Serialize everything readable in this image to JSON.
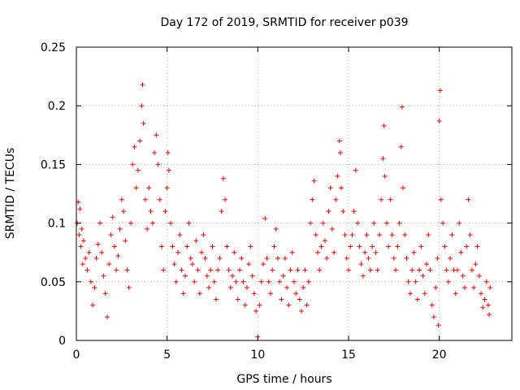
{
  "chart_data": {
    "type": "scatter",
    "title": "Day 172 of 2019, SRMTID for receiver p039",
    "xlabel": "GPS time / hours",
    "ylabel": "SRMTID / TECUs",
    "xlim": [
      0,
      24
    ],
    "ylim": [
      0,
      0.25
    ],
    "grid": true,
    "marker": "+",
    "color": "#ff0000",
    "x_ticks": [
      {
        "value": 0,
        "label": "0"
      },
      {
        "value": 5,
        "label": "5"
      },
      {
        "value": 10,
        "label": "10"
      },
      {
        "value": 15,
        "label": "15"
      },
      {
        "value": 20,
        "label": "20"
      }
    ],
    "y_ticks": [
      {
        "value": 0,
        "label": "0"
      },
      {
        "value": 0.05,
        "label": "0.05"
      },
      {
        "value": 0.1,
        "label": "0.1"
      },
      {
        "value": 0.15,
        "label": "0.15"
      },
      {
        "value": 0.2,
        "label": "0.2"
      },
      {
        "value": 0.25,
        "label": "0.25"
      }
    ],
    "series": [
      {
        "name": "SRMTID",
        "points": [
          [
            0.05,
            0.1
          ],
          [
            0.1,
            0.118
          ],
          [
            0.15,
            0.09
          ],
          [
            0.2,
            0.112
          ],
          [
            0.25,
            0.08
          ],
          [
            0.3,
            0.095
          ],
          [
            0.35,
            0.065
          ],
          [
            0.4,
            0.085
          ],
          [
            0.5,
            0.07
          ],
          [
            0.6,
            0.06
          ],
          [
            0.7,
            0.075
          ],
          [
            0.8,
            0.05
          ],
          [
            0.9,
            0.03
          ],
          [
            1.0,
            0.045
          ],
          [
            1.1,
            0.07
          ],
          [
            1.2,
            0.082
          ],
          [
            1.3,
            0.1
          ],
          [
            1.4,
            0.075
          ],
          [
            1.5,
            0.055
          ],
          [
            1.6,
            0.04
          ],
          [
            1.7,
            0.02
          ],
          [
            1.8,
            0.065
          ],
          [
            1.9,
            0.09
          ],
          [
            2.0,
            0.105
          ],
          [
            2.1,
            0.08
          ],
          [
            2.2,
            0.06
          ],
          [
            2.3,
            0.072
          ],
          [
            2.4,
            0.095
          ],
          [
            2.5,
            0.12
          ],
          [
            2.6,
            0.11
          ],
          [
            2.7,
            0.085
          ],
          [
            2.8,
            0.06
          ],
          [
            2.9,
            0.045
          ],
          [
            3.0,
            0.1
          ],
          [
            3.1,
            0.15
          ],
          [
            3.2,
            0.165
          ],
          [
            3.3,
            0.13
          ],
          [
            3.4,
            0.145
          ],
          [
            3.5,
            0.17
          ],
          [
            3.6,
            0.2
          ],
          [
            3.65,
            0.218
          ],
          [
            3.7,
            0.185
          ],
          [
            3.8,
            0.12
          ],
          [
            3.9,
            0.095
          ],
          [
            4.0,
            0.13
          ],
          [
            4.1,
            0.11
          ],
          [
            4.2,
            0.1
          ],
          [
            4.3,
            0.16
          ],
          [
            4.4,
            0.175
          ],
          [
            4.5,
            0.15
          ],
          [
            4.6,
            0.12
          ],
          [
            4.7,
            0.08
          ],
          [
            4.8,
            0.06
          ],
          [
            4.9,
            0.11
          ],
          [
            5.0,
            0.13
          ],
          [
            5.05,
            0.16
          ],
          [
            5.1,
            0.145
          ],
          [
            5.2,
            0.1
          ],
          [
            5.3,
            0.08
          ],
          [
            5.4,
            0.065
          ],
          [
            5.5,
            0.05
          ],
          [
            5.6,
            0.075
          ],
          [
            5.7,
            0.09
          ],
          [
            5.8,
            0.06
          ],
          [
            5.9,
            0.04
          ],
          [
            6.0,
            0.055
          ],
          [
            6.1,
            0.08
          ],
          [
            6.2,
            0.1
          ],
          [
            6.3,
            0.07
          ],
          [
            6.4,
            0.065
          ],
          [
            6.5,
            0.05
          ],
          [
            6.6,
            0.085
          ],
          [
            6.7,
            0.06
          ],
          [
            6.8,
            0.04
          ],
          [
            6.9,
            0.075
          ],
          [
            7.0,
            0.09
          ],
          [
            7.1,
            0.07
          ],
          [
            7.2,
            0.055
          ],
          [
            7.3,
            0.045
          ],
          [
            7.4,
            0.06
          ],
          [
            7.5,
            0.08
          ],
          [
            7.6,
            0.05
          ],
          [
            7.7,
            0.035
          ],
          [
            7.8,
            0.06
          ],
          [
            7.9,
            0.07
          ],
          [
            8.0,
            0.11
          ],
          [
            8.1,
            0.138
          ],
          [
            8.2,
            0.12
          ],
          [
            8.3,
            0.08
          ],
          [
            8.4,
            0.06
          ],
          [
            8.5,
            0.045
          ],
          [
            8.6,
            0.055
          ],
          [
            8.7,
            0.075
          ],
          [
            8.8,
            0.05
          ],
          [
            8.9,
            0.035
          ],
          [
            9.0,
            0.06
          ],
          [
            9.1,
            0.07
          ],
          [
            9.2,
            0.05
          ],
          [
            9.3,
            0.03
          ],
          [
            9.4,
            0.045
          ],
          [
            9.5,
            0.065
          ],
          [
            9.6,
            0.08
          ],
          [
            9.7,
            0.055
          ],
          [
            9.8,
            0.04
          ],
          [
            9.9,
            0.025
          ],
          [
            10.0,
            0.003
          ],
          [
            10.1,
            0.03
          ],
          [
            10.2,
            0.05
          ],
          [
            10.3,
            0.065
          ],
          [
            10.4,
            0.104
          ],
          [
            10.5,
            0.07
          ],
          [
            10.6,
            0.05
          ],
          [
            10.7,
            0.04
          ],
          [
            10.8,
            0.06
          ],
          [
            10.9,
            0.08
          ],
          [
            11.0,
            0.095
          ],
          [
            11.1,
            0.07
          ],
          [
            11.2,
            0.05
          ],
          [
            11.3,
            0.035
          ],
          [
            11.4,
            0.055
          ],
          [
            11.5,
            0.07
          ],
          [
            11.6,
            0.045
          ],
          [
            11.7,
            0.03
          ],
          [
            11.8,
            0.06
          ],
          [
            11.9,
            0.075
          ],
          [
            12.0,
            0.05
          ],
          [
            12.1,
            0.04
          ],
          [
            12.2,
            0.06
          ],
          [
            12.3,
            0.035
          ],
          [
            12.4,
            0.025
          ],
          [
            12.5,
            0.045
          ],
          [
            12.6,
            0.06
          ],
          [
            12.7,
            0.03
          ],
          [
            12.8,
            0.05
          ],
          [
            12.9,
            0.1
          ],
          [
            13.0,
            0.12
          ],
          [
            13.1,
            0.136
          ],
          [
            13.2,
            0.09
          ],
          [
            13.3,
            0.075
          ],
          [
            13.4,
            0.06
          ],
          [
            13.5,
            0.08
          ],
          [
            13.6,
            0.1
          ],
          [
            13.7,
            0.085
          ],
          [
            13.8,
            0.07
          ],
          [
            13.9,
            0.11
          ],
          [
            14.0,
            0.13
          ],
          [
            14.1,
            0.095
          ],
          [
            14.2,
            0.075
          ],
          [
            14.3,
            0.12
          ],
          [
            14.4,
            0.14
          ],
          [
            14.5,
            0.17
          ],
          [
            14.55,
            0.16
          ],
          [
            14.6,
            0.13
          ],
          [
            14.7,
            0.11
          ],
          [
            14.8,
            0.09
          ],
          [
            14.9,
            0.07
          ],
          [
            15.0,
            0.06
          ],
          [
            15.1,
            0.08
          ],
          [
            15.2,
            0.09
          ],
          [
            15.3,
            0.11
          ],
          [
            15.4,
            0.145
          ],
          [
            15.5,
            0.1
          ],
          [
            15.6,
            0.08
          ],
          [
            15.7,
            0.065
          ],
          [
            15.8,
            0.055
          ],
          [
            15.9,
            0.075
          ],
          [
            16.0,
            0.09
          ],
          [
            16.1,
            0.07
          ],
          [
            16.2,
            0.06
          ],
          [
            16.3,
            0.08
          ],
          [
            16.4,
            0.1
          ],
          [
            16.5,
            0.075
          ],
          [
            16.6,
            0.06
          ],
          [
            16.7,
            0.09
          ],
          [
            16.8,
            0.12
          ],
          [
            16.9,
            0.155
          ],
          [
            16.95,
            0.183
          ],
          [
            17.0,
            0.14
          ],
          [
            17.1,
            0.1
          ],
          [
            17.2,
            0.08
          ],
          [
            17.3,
            0.12
          ],
          [
            17.4,
            0.09
          ],
          [
            17.5,
            0.07
          ],
          [
            17.6,
            0.06
          ],
          [
            17.7,
            0.08
          ],
          [
            17.8,
            0.1
          ],
          [
            17.9,
            0.165
          ],
          [
            17.95,
            0.199
          ],
          [
            18.0,
            0.13
          ],
          [
            18.1,
            0.09
          ],
          [
            18.2,
            0.07
          ],
          [
            18.3,
            0.05
          ],
          [
            18.4,
            0.04
          ],
          [
            18.5,
            0.06
          ],
          [
            18.6,
            0.075
          ],
          [
            18.7,
            0.05
          ],
          [
            18.8,
            0.035
          ],
          [
            18.9,
            0.06
          ],
          [
            19.0,
            0.08
          ],
          [
            19.1,
            0.055
          ],
          [
            19.2,
            0.04
          ],
          [
            19.3,
            0.065
          ],
          [
            19.4,
            0.09
          ],
          [
            19.5,
            0.06
          ],
          [
            19.6,
            0.03
          ],
          [
            19.7,
            0.02
          ],
          [
            19.8,
            0.045
          ],
          [
            19.9,
            0.07
          ],
          [
            19.95,
            0.013
          ],
          [
            20.0,
            0.187
          ],
          [
            20.05,
            0.213
          ],
          [
            20.1,
            0.12
          ],
          [
            20.2,
            0.1
          ],
          [
            20.3,
            0.08
          ],
          [
            20.4,
            0.06
          ],
          [
            20.5,
            0.05
          ],
          [
            20.6,
            0.07
          ],
          [
            20.7,
            0.09
          ],
          [
            20.8,
            0.06
          ],
          [
            20.9,
            0.04
          ],
          [
            21.0,
            0.06
          ],
          [
            21.1,
            0.1
          ],
          [
            21.2,
            0.075
          ],
          [
            21.3,
            0.055
          ],
          [
            21.4,
            0.045
          ],
          [
            21.5,
            0.08
          ],
          [
            21.6,
            0.12
          ],
          [
            21.7,
            0.09
          ],
          [
            21.8,
            0.06
          ],
          [
            21.9,
            0.045
          ],
          [
            22.0,
            0.065
          ],
          [
            22.1,
            0.08
          ],
          [
            22.2,
            0.055
          ],
          [
            22.3,
            0.04
          ],
          [
            22.4,
            0.028
          ],
          [
            22.5,
            0.035
          ],
          [
            22.6,
            0.05
          ],
          [
            22.7,
            0.03
          ],
          [
            22.75,
            0.022
          ],
          [
            22.8,
            0.045
          ]
        ]
      }
    ]
  }
}
